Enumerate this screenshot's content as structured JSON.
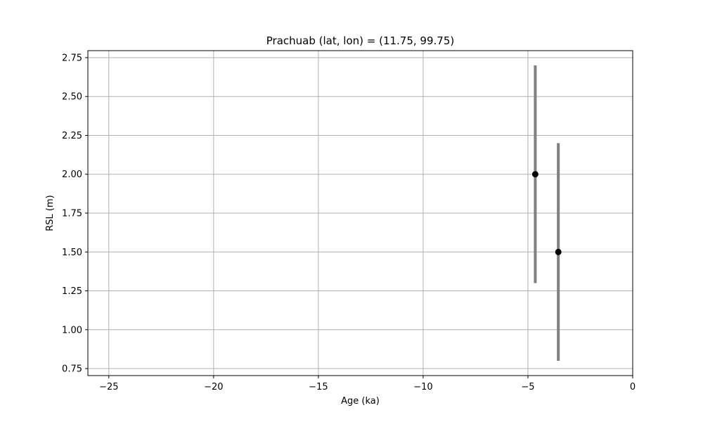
{
  "chart_data": {
    "type": "scatter",
    "title": "Prachuab (lat, lon) = (11.75, 99.75)",
    "xlabel": "Age (ka)",
    "ylabel": "RSL (m)",
    "xlim": [
      -26,
      0
    ],
    "ylim": [
      0.705,
      2.795
    ],
    "xticks": [
      -25,
      -20,
      -15,
      -10,
      -5,
      0
    ],
    "xtick_labels": [
      "−25",
      "−20",
      "−15",
      "−10",
      "−5",
      "0"
    ],
    "yticks": [
      0.75,
      1.0,
      1.25,
      1.5,
      1.75,
      2.0,
      2.25,
      2.5,
      2.75
    ],
    "ytick_labels": [
      "0.75",
      "1.00",
      "1.25",
      "1.50",
      "1.75",
      "2.00",
      "2.25",
      "2.50",
      "2.75"
    ],
    "grid": true,
    "points": [
      {
        "x": -4.65,
        "y": 2.0,
        "err_low": 1.3,
        "err_high": 2.7
      },
      {
        "x": -3.55,
        "y": 1.5,
        "err_low": 0.8,
        "err_high": 2.2
      }
    ],
    "colors": {
      "marker": "#000000",
      "errorbar": "#808080",
      "grid": "#b0b0b0",
      "axes": "#000000"
    }
  }
}
